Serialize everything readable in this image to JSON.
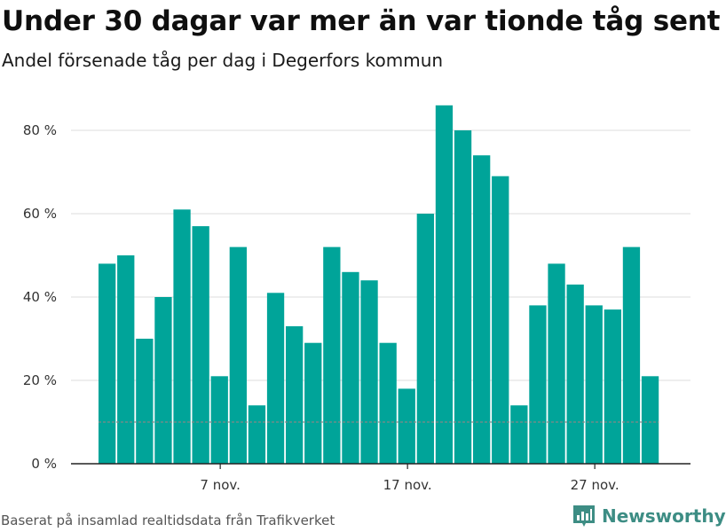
{
  "header": {
    "title": "Under 30 dagar var mer än var tionde tåg sent",
    "subtitle": "Andel försenade tåg per dag i Degerfors kommun"
  },
  "footer": {
    "source": "Baserat på insamlad realtidsdata från Trafikverket",
    "brand": "Newsworthy"
  },
  "colors": {
    "bar": "#00a499",
    "grid": "#dddddd",
    "reference_line": "#888888",
    "brand": "#3d8d84"
  },
  "chart_data": {
    "type": "bar",
    "x": [
      "1 nov.",
      "2 nov.",
      "3 nov.",
      "4 nov.",
      "5 nov.",
      "6 nov.",
      "7 nov.",
      "8 nov.",
      "9 nov.",
      "10 nov.",
      "11 nov.",
      "12 nov.",
      "13 nov.",
      "14 nov.",
      "15 nov.",
      "16 nov.",
      "17 nov.",
      "18 nov.",
      "19 nov.",
      "20 nov.",
      "21 nov.",
      "22 nov.",
      "23 nov.",
      "24 nov.",
      "25 nov.",
      "26 nov.",
      "27 nov.",
      "28 nov.",
      "29 nov.",
      "30 nov."
    ],
    "values": [
      48,
      50,
      30,
      40,
      61,
      57,
      21,
      52,
      14,
      41,
      33,
      29,
      52,
      46,
      44,
      29,
      18,
      60,
      86,
      80,
      74,
      69,
      14,
      38,
      48,
      43,
      38,
      37,
      52,
      21
    ],
    "reference_line": 10,
    "ylim": [
      0,
      90
    ],
    "yticks": [
      0,
      20,
      40,
      60,
      80
    ],
    "ytick_format": "{} %",
    "xticks": [
      "7 nov.",
      "17 nov.",
      "27 nov."
    ],
    "grid": true,
    "legend": "none"
  }
}
